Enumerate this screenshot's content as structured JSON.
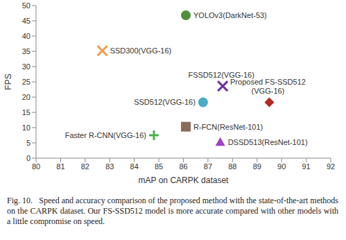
{
  "chart_data": {
    "type": "scatter",
    "xlabel": "mAP on CARPK dataset",
    "ylabel": "FPS",
    "xlim": [
      80,
      92
    ],
    "xticks": [
      80,
      81,
      82,
      83,
      84,
      85,
      86,
      87,
      88,
      89,
      90,
      91,
      92
    ],
    "ylim": [
      0,
      50
    ],
    "yticks": [
      0,
      5,
      10,
      15,
      20,
      25,
      30,
      35,
      40,
      45,
      50
    ],
    "grid": false,
    "caption": "Fig. 10.   Speed and accuracy comparison of the proposed method with the state-of-the-art methods on the CARPK dataset. Our FS-SSD512 model is more accurate compared with other models with a little compromise on speed.",
    "series": [
      {
        "name": "YOLOv3(DarkNet-53)",
        "color": "#4e8f3a",
        "marker": "circle",
        "x": [
          86.1
        ],
        "y": [
          46.8
        ]
      },
      {
        "name": "SSD300(VGG-16)",
        "color": "#f0a050",
        "marker": "x",
        "x": [
          82.7
        ],
        "y": [
          35.2
        ]
      },
      {
        "name": "FSSD512(VGG-16)",
        "color": "#7030a0",
        "marker": "x",
        "x": [
          87.6
        ],
        "y": [
          23.6
        ]
      },
      {
        "name": "SSD512(VGG-16)",
        "color": "#4bacc6",
        "marker": "circle",
        "x": [
          86.8
        ],
        "y": [
          18.3
        ]
      },
      {
        "name": "Proposed FS-SSD512 (VGG-16)",
        "color": "#b22a1e",
        "marker": "diamond",
        "x": [
          89.5
        ],
        "y": [
          18.3
        ]
      },
      {
        "name": "R-FCN(ResNet-101)",
        "color": "#8b6a5a",
        "marker": "square",
        "x": [
          86.1
        ],
        "y": [
          10.3
        ]
      },
      {
        "name": "Faster R-CNN(VGG-16)",
        "color": "#4cb04c",
        "marker": "plus",
        "x": [
          84.8
        ],
        "y": [
          7.5
        ]
      },
      {
        "name": "DSSD513(ResNet-101)",
        "color": "#a23fc4",
        "marker": "triangle",
        "x": [
          87.5
        ],
        "y": [
          5.3
        ]
      }
    ]
  }
}
